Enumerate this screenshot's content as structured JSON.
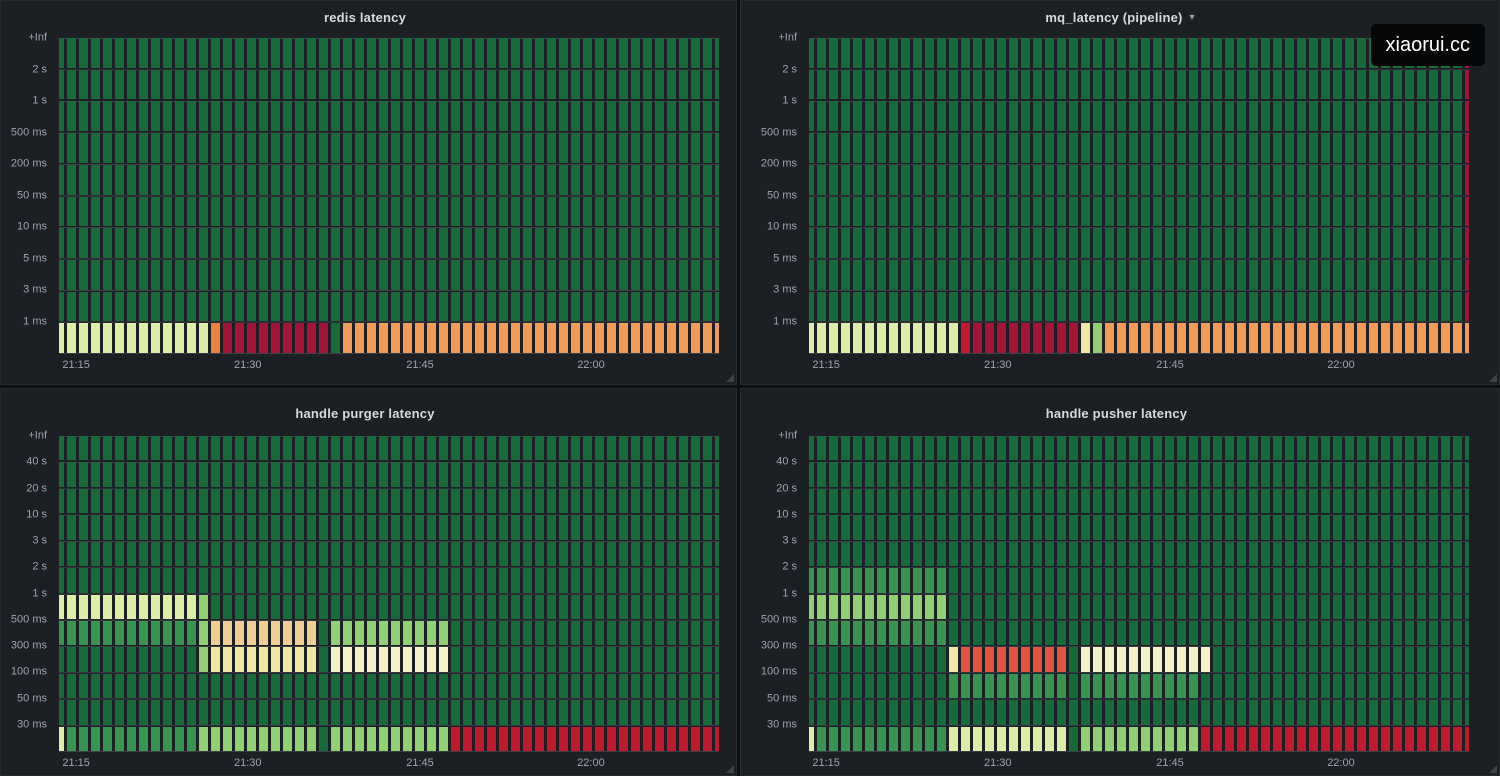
{
  "watermark": "xiaorui.cc",
  "colors": {
    "g": "#176a3a",
    "m": "#389550",
    "l": "#90cf72",
    "y": "#dcedaa",
    "Y": "#f1e7a5",
    "C": "#f4f0c8",
    "T": "#efcf94",
    "o": "#f09b57",
    "O": "#e8823e",
    "t": "#e1543f",
    "r": "#a31536",
    "R": "#c01a2e"
  },
  "chart_data": [
    {
      "type": "heatmap",
      "title": "redis latency",
      "menu_caret": "",
      "y_labels": [
        "+Inf",
        "2 s",
        "1 s",
        "500 ms",
        "200 ms",
        "50 ms",
        "10 ms",
        "5 ms",
        "3 ms",
        "1 ms"
      ],
      "x_ticks": [
        {
          "label": "21:15",
          "pos_pct": 2.6
        },
        {
          "label": "21:30",
          "pos_pct": 28.6
        },
        {
          "label": "21:45",
          "pos_pct": 54.7
        },
        {
          "label": "22:00",
          "pos_pct": 80.6
        }
      ],
      "rows": [
        [
          [
            "g",
            56
          ]
        ],
        [
          [
            "g",
            56
          ]
        ],
        [
          [
            "g",
            56
          ]
        ],
        [
          [
            "g",
            56
          ]
        ],
        [
          [
            "g",
            56
          ]
        ],
        [
          [
            "g",
            56
          ]
        ],
        [
          [
            "g",
            56
          ]
        ],
        [
          [
            "g",
            56
          ]
        ],
        [
          [
            "g",
            56
          ]
        ],
        [
          [
            "y",
            13
          ],
          [
            "O",
            1
          ],
          [
            "r",
            9
          ],
          [
            "g",
            1
          ],
          [
            "o",
            32
          ]
        ]
      ]
    },
    {
      "type": "heatmap",
      "title": "mq_latency (pipeline)",
      "menu_caret": "▾",
      "y_labels": [
        "+Inf",
        "2 s",
        "1 s",
        "500 ms",
        "200 ms",
        "50 ms",
        "10 ms",
        "5 ms",
        "3 ms",
        "1 ms"
      ],
      "x_ticks": [
        {
          "label": "21:15",
          "pos_pct": 2.6
        },
        {
          "label": "21:30",
          "pos_pct": 28.6
        },
        {
          "label": "21:45",
          "pos_pct": 54.7
        },
        {
          "label": "22:00",
          "pos_pct": 80.6
        }
      ],
      "rows": [
        [
          [
            "g",
            55
          ],
          [
            "r",
            1
          ]
        ],
        [
          [
            "g",
            55
          ],
          [
            "r",
            1
          ]
        ],
        [
          [
            "g",
            55
          ],
          [
            "r",
            1
          ]
        ],
        [
          [
            "g",
            55
          ],
          [
            "r",
            1
          ]
        ],
        [
          [
            "g",
            55
          ],
          [
            "r",
            1
          ]
        ],
        [
          [
            "g",
            55
          ],
          [
            "r",
            1
          ]
        ],
        [
          [
            "g",
            55
          ],
          [
            "r",
            1
          ]
        ],
        [
          [
            "g",
            55
          ],
          [
            "r",
            1
          ]
        ],
        [
          [
            "g",
            55
          ],
          [
            "r",
            1
          ]
        ],
        [
          [
            "y",
            13
          ],
          [
            "R",
            1
          ],
          [
            "r",
            9
          ],
          [
            "Y",
            1
          ],
          [
            "l",
            1
          ],
          [
            "o",
            31
          ]
        ]
      ]
    },
    {
      "type": "heatmap",
      "title": "handle purger latency",
      "menu_caret": "",
      "y_labels": [
        "+Inf",
        "40 s",
        "20 s",
        "10 s",
        "3 s",
        "2 s",
        "1 s",
        "500 ms",
        "300 ms",
        "100 ms",
        "50 ms",
        "30 ms"
      ],
      "x_ticks": [
        {
          "label": "21:15",
          "pos_pct": 2.6
        },
        {
          "label": "21:30",
          "pos_pct": 28.6
        },
        {
          "label": "21:45",
          "pos_pct": 54.7
        },
        {
          "label": "22:00",
          "pos_pct": 80.6
        }
      ],
      "rows": [
        [
          [
            "g",
            56
          ]
        ],
        [
          [
            "g",
            56
          ]
        ],
        [
          [
            "g",
            56
          ]
        ],
        [
          [
            "g",
            56
          ]
        ],
        [
          [
            "g",
            56
          ]
        ],
        [
          [
            "g",
            56
          ]
        ],
        [
          [
            "y",
            12
          ],
          [
            "l",
            1
          ],
          [
            "g",
            43
          ]
        ],
        [
          [
            "m",
            12
          ],
          [
            "l",
            1
          ],
          [
            "T",
            9
          ],
          [
            "g",
            1
          ],
          [
            "l",
            10
          ],
          [
            "g",
            23
          ]
        ],
        [
          [
            "g",
            12
          ],
          [
            "l",
            1
          ],
          [
            "Y",
            9
          ],
          [
            "g",
            1
          ],
          [
            "C",
            10
          ],
          [
            "g",
            23
          ]
        ],
        [
          [
            "g",
            56
          ]
        ],
        [
          [
            "g",
            56
          ]
        ],
        [
          [
            "y",
            1
          ],
          [
            "m",
            11
          ],
          [
            "l",
            10
          ],
          [
            "g",
            1
          ],
          [
            "l",
            10
          ],
          [
            "R",
            23
          ]
        ]
      ]
    },
    {
      "type": "heatmap",
      "title": "handle pusher latency",
      "menu_caret": "",
      "y_labels": [
        "+Inf",
        "40 s",
        "20 s",
        "10 s",
        "3 s",
        "2 s",
        "1 s",
        "500 ms",
        "300 ms",
        "100 ms",
        "50 ms",
        "30 ms"
      ],
      "x_ticks": [
        {
          "label": "21:15",
          "pos_pct": 2.6
        },
        {
          "label": "21:30",
          "pos_pct": 28.6
        },
        {
          "label": "21:45",
          "pos_pct": 54.7
        },
        {
          "label": "22:00",
          "pos_pct": 80.6
        }
      ],
      "rows": [
        [
          [
            "g",
            56
          ]
        ],
        [
          [
            "g",
            56
          ]
        ],
        [
          [
            "g",
            56
          ]
        ],
        [
          [
            "g",
            56
          ]
        ],
        [
          [
            "g",
            56
          ]
        ],
        [
          [
            "m",
            12
          ],
          [
            "g",
            44
          ]
        ],
        [
          [
            "l",
            12
          ],
          [
            "g",
            44
          ]
        ],
        [
          [
            "m",
            12
          ],
          [
            "g",
            44
          ]
        ],
        [
          [
            "g",
            12
          ],
          [
            "Y",
            1
          ],
          [
            "t",
            9
          ],
          [
            "g",
            1
          ],
          [
            "C",
            11
          ],
          [
            "g",
            22
          ]
        ],
        [
          [
            "g",
            12
          ],
          [
            "m",
            10
          ],
          [
            "g",
            1
          ],
          [
            "m",
            10
          ],
          [
            "g",
            23
          ]
        ],
        [
          [
            "g",
            56
          ]
        ],
        [
          [
            "y",
            1
          ],
          [
            "m",
            11
          ],
          [
            "y",
            10
          ],
          [
            "g",
            1
          ],
          [
            "l",
            10
          ],
          [
            "R",
            23
          ]
        ]
      ]
    }
  ]
}
